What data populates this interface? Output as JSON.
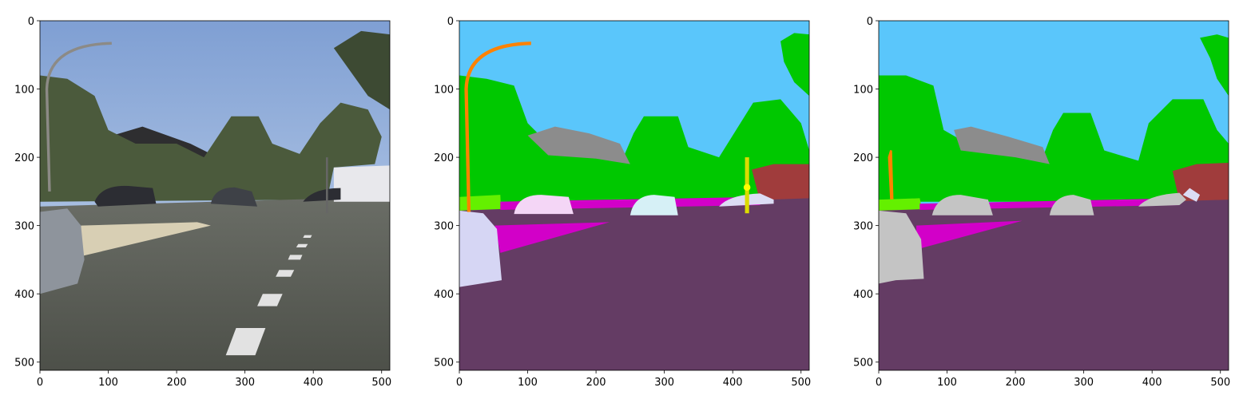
{
  "chart_data": [
    {
      "type": "image",
      "xlim": [
        0,
        512
      ],
      "ylim": [
        512,
        0
      ],
      "xticks": [
        0,
        100,
        200,
        300,
        400,
        500
      ],
      "yticks": [
        0,
        100,
        200,
        300,
        400,
        500
      ]
    },
    {
      "type": "image",
      "xlim": [
        0,
        512
      ],
      "ylim": [
        512,
        0
      ],
      "xticks": [
        0,
        100,
        200,
        300,
        400,
        500
      ],
      "yticks": [
        0,
        100,
        200,
        300,
        400,
        500
      ]
    },
    {
      "type": "image",
      "xlim": [
        0,
        512
      ],
      "ylim": [
        512,
        0
      ],
      "xticks": [
        0,
        100,
        200,
        300,
        400,
        500
      ],
      "yticks": [
        0,
        100,
        200,
        300,
        400,
        500
      ]
    }
  ]
}
